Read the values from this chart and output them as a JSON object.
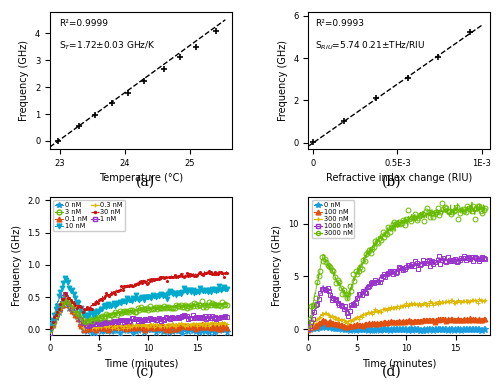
{
  "fig_width": 5.0,
  "fig_height": 3.89,
  "dpi": 100,
  "panel_a": {
    "x_data": [
      22.97,
      23.3,
      23.55,
      23.8,
      24.05,
      24.3,
      24.6,
      24.85,
      25.1,
      25.4
    ],
    "y_data": [
      0.0,
      0.55,
      0.95,
      1.4,
      1.78,
      2.22,
      2.68,
      3.1,
      3.5,
      4.1
    ],
    "fit_x": [
      22.85,
      25.55
    ],
    "fit_y": [
      -0.22,
      4.5
    ],
    "xlabel": "Temperature (°C)",
    "ylabel": "Frequency (GHz)",
    "xlim": [
      22.85,
      25.65
    ],
    "ylim": [
      -0.3,
      4.8
    ],
    "xticks": [
      23,
      24,
      25
    ],
    "yticks": [
      0,
      1,
      2,
      3,
      4
    ],
    "annotation1": "R²=0.9999",
    "annotation2": "S$_{T}$=1.72±0.03 GHz/K",
    "label": "(a)"
  },
  "panel_b": {
    "x_data": [
      0.0,
      0.00018,
      0.00037,
      0.00056,
      0.00074,
      0.00093
    ],
    "y_data": [
      0.02,
      1.05,
      2.1,
      3.05,
      4.05,
      5.25
    ],
    "fit_x": [
      -3e-05,
      0.001
    ],
    "fit_y": [
      -0.17,
      5.55
    ],
    "xlabel": "Refractive index change (RIU)",
    "ylabel": "Frequency (GHz)",
    "xlim": [
      -3e-05,
      0.00105
    ],
    "ylim": [
      -0.3,
      6.2
    ],
    "xticks": [
      0,
      0.0005,
      0.001
    ],
    "xticklabels": [
      "0",
      "0.5E-3",
      "1E-3"
    ],
    "yticks": [
      0,
      2,
      4,
      6
    ],
    "annotation1": "R²=0.9993",
    "annotation2": "S$_{RIU}$=5.74 0.21±THz/RIU",
    "label": "(b)"
  },
  "panel_c": {
    "xlabel": "Time (minutes)",
    "ylabel": "Frequency (GHz)",
    "xlim": [
      0,
      18.5
    ],
    "ylim": [
      -0.08,
      2.05
    ],
    "xticks": [
      0,
      5,
      10,
      15
    ],
    "yticks": [
      0,
      0.5,
      1.0,
      1.5,
      2.0
    ],
    "label": "(c)"
  },
  "panel_d": {
    "xlabel": "Time (minutes)",
    "ylabel": "Frequency (GHz)",
    "xlim": [
      0,
      18.5
    ],
    "ylim": [
      -0.5,
      12.5
    ],
    "xticks": [
      0,
      5,
      10,
      15
    ],
    "yticks": [
      0,
      5,
      10
    ],
    "label": "(d)"
  }
}
